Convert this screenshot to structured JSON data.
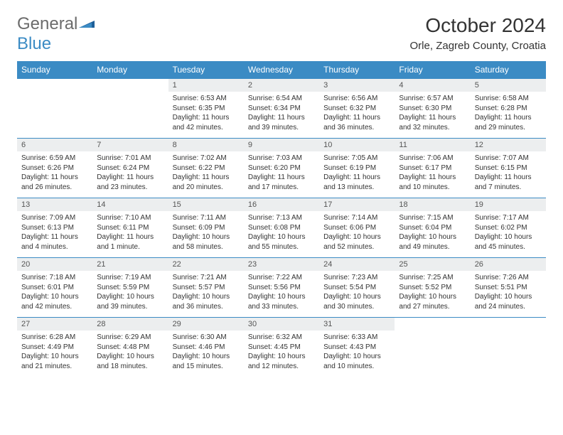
{
  "logo": {
    "word1": "General",
    "word2": "Blue"
  },
  "title": "October 2024",
  "location": "Orle, Zagreb County, Croatia",
  "colors": {
    "header_bg": "#3b8bc4",
    "daynum_bg": "#eceeef",
    "border": "#3b8bc4"
  },
  "dayNames": [
    "Sunday",
    "Monday",
    "Tuesday",
    "Wednesday",
    "Thursday",
    "Friday",
    "Saturday"
  ],
  "weeks": [
    [
      null,
      null,
      {
        "n": "1",
        "sr": "6:53 AM",
        "ss": "6:35 PM",
        "dl": "11 hours and 42 minutes."
      },
      {
        "n": "2",
        "sr": "6:54 AM",
        "ss": "6:34 PM",
        "dl": "11 hours and 39 minutes."
      },
      {
        "n": "3",
        "sr": "6:56 AM",
        "ss": "6:32 PM",
        "dl": "11 hours and 36 minutes."
      },
      {
        "n": "4",
        "sr": "6:57 AM",
        "ss": "6:30 PM",
        "dl": "11 hours and 32 minutes."
      },
      {
        "n": "5",
        "sr": "6:58 AM",
        "ss": "6:28 PM",
        "dl": "11 hours and 29 minutes."
      }
    ],
    [
      {
        "n": "6",
        "sr": "6:59 AM",
        "ss": "6:26 PM",
        "dl": "11 hours and 26 minutes."
      },
      {
        "n": "7",
        "sr": "7:01 AM",
        "ss": "6:24 PM",
        "dl": "11 hours and 23 minutes."
      },
      {
        "n": "8",
        "sr": "7:02 AM",
        "ss": "6:22 PM",
        "dl": "11 hours and 20 minutes."
      },
      {
        "n": "9",
        "sr": "7:03 AM",
        "ss": "6:20 PM",
        "dl": "11 hours and 17 minutes."
      },
      {
        "n": "10",
        "sr": "7:05 AM",
        "ss": "6:19 PM",
        "dl": "11 hours and 13 minutes."
      },
      {
        "n": "11",
        "sr": "7:06 AM",
        "ss": "6:17 PM",
        "dl": "11 hours and 10 minutes."
      },
      {
        "n": "12",
        "sr": "7:07 AM",
        "ss": "6:15 PM",
        "dl": "11 hours and 7 minutes."
      }
    ],
    [
      {
        "n": "13",
        "sr": "7:09 AM",
        "ss": "6:13 PM",
        "dl": "11 hours and 4 minutes."
      },
      {
        "n": "14",
        "sr": "7:10 AM",
        "ss": "6:11 PM",
        "dl": "11 hours and 1 minute."
      },
      {
        "n": "15",
        "sr": "7:11 AM",
        "ss": "6:09 PM",
        "dl": "10 hours and 58 minutes."
      },
      {
        "n": "16",
        "sr": "7:13 AM",
        "ss": "6:08 PM",
        "dl": "10 hours and 55 minutes."
      },
      {
        "n": "17",
        "sr": "7:14 AM",
        "ss": "6:06 PM",
        "dl": "10 hours and 52 minutes."
      },
      {
        "n": "18",
        "sr": "7:15 AM",
        "ss": "6:04 PM",
        "dl": "10 hours and 49 minutes."
      },
      {
        "n": "19",
        "sr": "7:17 AM",
        "ss": "6:02 PM",
        "dl": "10 hours and 45 minutes."
      }
    ],
    [
      {
        "n": "20",
        "sr": "7:18 AM",
        "ss": "6:01 PM",
        "dl": "10 hours and 42 minutes."
      },
      {
        "n": "21",
        "sr": "7:19 AM",
        "ss": "5:59 PM",
        "dl": "10 hours and 39 minutes."
      },
      {
        "n": "22",
        "sr": "7:21 AM",
        "ss": "5:57 PM",
        "dl": "10 hours and 36 minutes."
      },
      {
        "n": "23",
        "sr": "7:22 AM",
        "ss": "5:56 PM",
        "dl": "10 hours and 33 minutes."
      },
      {
        "n": "24",
        "sr": "7:23 AM",
        "ss": "5:54 PM",
        "dl": "10 hours and 30 minutes."
      },
      {
        "n": "25",
        "sr": "7:25 AM",
        "ss": "5:52 PM",
        "dl": "10 hours and 27 minutes."
      },
      {
        "n": "26",
        "sr": "7:26 AM",
        "ss": "5:51 PM",
        "dl": "10 hours and 24 minutes."
      }
    ],
    [
      {
        "n": "27",
        "sr": "6:28 AM",
        "ss": "4:49 PM",
        "dl": "10 hours and 21 minutes."
      },
      {
        "n": "28",
        "sr": "6:29 AM",
        "ss": "4:48 PM",
        "dl": "10 hours and 18 minutes."
      },
      {
        "n": "29",
        "sr": "6:30 AM",
        "ss": "4:46 PM",
        "dl": "10 hours and 15 minutes."
      },
      {
        "n": "30",
        "sr": "6:32 AM",
        "ss": "4:45 PM",
        "dl": "10 hours and 12 minutes."
      },
      {
        "n": "31",
        "sr": "6:33 AM",
        "ss": "4:43 PM",
        "dl": "10 hours and 10 minutes."
      },
      null,
      null
    ]
  ],
  "labels": {
    "sunrise": "Sunrise:",
    "sunset": "Sunset:",
    "daylight": "Daylight:"
  }
}
